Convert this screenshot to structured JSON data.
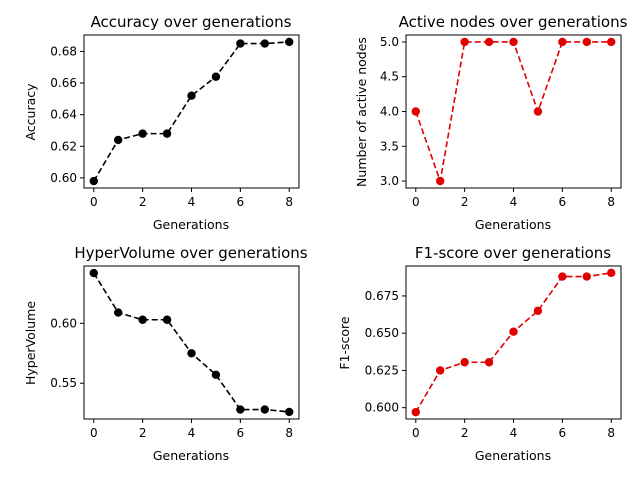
{
  "chart_data": [
    {
      "type": "line",
      "title": "Accuracy over generations",
      "xlabel": "Generations",
      "ylabel": "Accuracy",
      "color": "#000000",
      "line_style": "dashed",
      "marker": "circle",
      "x": [
        0,
        1,
        2,
        3,
        4,
        5,
        6,
        7,
        8
      ],
      "y": [
        0.598,
        0.624,
        0.628,
        0.628,
        0.652,
        0.664,
        0.685,
        0.685,
        0.686
      ],
      "xlim": [
        -0.4,
        8.4
      ],
      "ylim": [
        0.5936,
        0.6904
      ],
      "xticks": [
        0,
        2,
        4,
        6,
        8
      ],
      "yticks": [
        0.6,
        0.62,
        0.64,
        0.66,
        0.68
      ],
      "yticklabels": [
        "0.60",
        "0.62",
        "0.64",
        "0.66",
        "0.68"
      ],
      "grid": false
    },
    {
      "type": "line",
      "title": "Active nodes over generations",
      "xlabel": "Generations",
      "ylabel": "Number of active nodes",
      "color": "#e00000",
      "line_style": "dashed",
      "marker": "circle",
      "x": [
        0,
        1,
        2,
        3,
        4,
        5,
        6,
        7,
        8
      ],
      "y": [
        4,
        3,
        5,
        5,
        5,
        4,
        5,
        5,
        5
      ],
      "xlim": [
        -0.4,
        8.4
      ],
      "ylim": [
        2.9,
        5.1
      ],
      "xticks": [
        0,
        2,
        4,
        6,
        8
      ],
      "yticks": [
        3.0,
        3.5,
        4.0,
        4.5,
        5.0
      ],
      "yticklabels": [
        "3.0",
        "3.5",
        "4.0",
        "4.5",
        "5.0"
      ],
      "grid": false
    },
    {
      "type": "line",
      "title": "HyperVolume over generations",
      "xlabel": "Generations",
      "ylabel": "HyperVolume",
      "color": "#000000",
      "line_style": "dashed",
      "marker": "circle",
      "x": [
        0,
        1,
        2,
        3,
        4,
        5,
        6,
        7,
        8
      ],
      "y": [
        0.642,
        0.609,
        0.603,
        0.603,
        0.575,
        0.557,
        0.528,
        0.528,
        0.526
      ],
      "xlim": [
        -0.4,
        8.4
      ],
      "ylim": [
        0.5201,
        0.6479
      ],
      "xticks": [
        0,
        2,
        4,
        6,
        8
      ],
      "yticks": [
        0.55,
        0.6
      ],
      "yticklabels": [
        "0.55",
        "0.60"
      ],
      "grid": false
    },
    {
      "type": "line",
      "title": "F1-score over generations",
      "xlabel": "Generations",
      "ylabel": "F1-score",
      "color": "#e00000",
      "line_style": "dashed",
      "marker": "circle",
      "x": [
        0,
        1,
        2,
        3,
        4,
        5,
        6,
        7,
        8
      ],
      "y": [
        0.597,
        0.625,
        0.6305,
        0.6305,
        0.651,
        0.665,
        0.688,
        0.688,
        0.6905
      ],
      "xlim": [
        -0.4,
        8.4
      ],
      "ylim": [
        0.5924,
        0.6951
      ],
      "xticks": [
        0,
        2,
        4,
        6,
        8
      ],
      "yticks": [
        0.6,
        0.625,
        0.65,
        0.675
      ],
      "yticklabels": [
        "0.600",
        "0.625",
        "0.650",
        "0.675"
      ],
      "grid": false
    }
  ]
}
